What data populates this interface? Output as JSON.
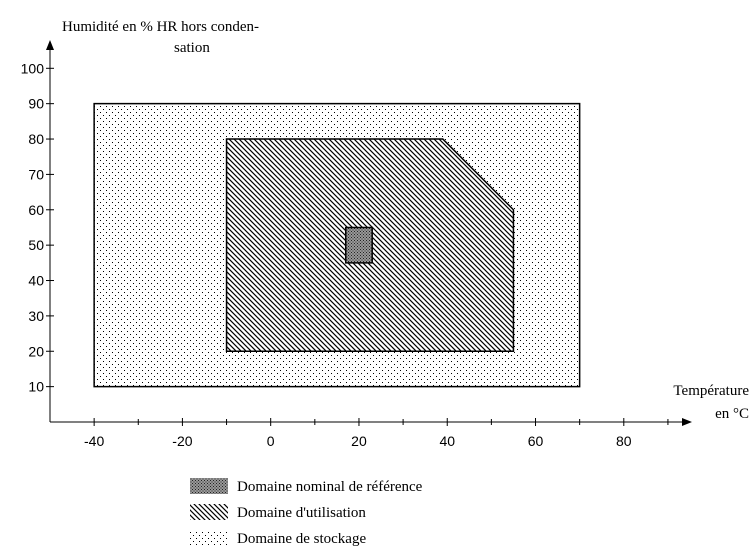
{
  "chart_data": {
    "type": "region",
    "y_label": [
      "Humidité en % HR hors conden-",
      "sation"
    ],
    "x_label": [
      "Température",
      "en °C"
    ],
    "xlim": [
      -50,
      95
    ],
    "xticks": [
      -40,
      -20,
      0,
      20,
      40,
      60,
      80
    ],
    "xminorticks": [
      -30,
      -10,
      10,
      30,
      50,
      70,
      90
    ],
    "ylim": [
      0,
      108
    ],
    "yticks": [
      10,
      20,
      30,
      40,
      50,
      60,
      70,
      80,
      90,
      100
    ],
    "series": [
      {
        "name": "Domaine de stockage",
        "pattern": "dots",
        "color": "#000000",
        "x": [
          -40,
          -40,
          70,
          70
        ],
        "values": [
          10,
          90,
          90,
          10
        ]
      },
      {
        "name": "Domaine d'utilisation",
        "pattern": "hatch",
        "color": "#000000",
        "x": [
          -10,
          -10,
          39,
          55,
          55
        ],
        "values": [
          20,
          80,
          80,
          60,
          20
        ]
      },
      {
        "name": "Domaine nominal de référence",
        "pattern": "dense",
        "color": "#000000",
        "x": [
          17,
          17,
          23,
          23
        ],
        "values": [
          45,
          55,
          55,
          45
        ]
      }
    ],
    "legend_order": [
      2,
      1,
      0
    ]
  }
}
